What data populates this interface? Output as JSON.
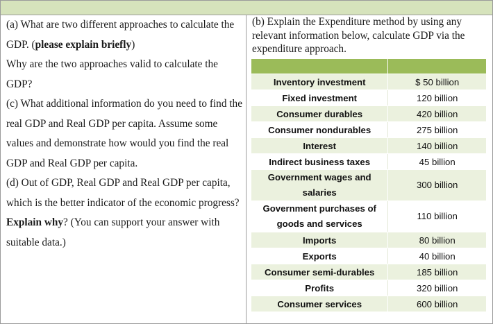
{
  "questions": {
    "a_text": "(a) What are two different approaches to calculate the GDP. (",
    "a_bold": "please explain briefly",
    "a_after": ")",
    "a_followup": "Why are the two approaches valid to calculate the GDP?",
    "c_text": "(c) What additional information do you need to find the real GDP and Real GDP per capita. Assume some values and demonstrate how would you find the real GDP and Real GDP per capita.",
    "d_text": "(d) Out of GDP, Real GDP and Real GDP per capita, which is the better indicator of the economic progress? ",
    "d_bold": "Explain why",
    "d_after": "? (You can support your answer with suitable data.)"
  },
  "part_b": {
    "prompt": "(b) Explain the Expenditure method by using any relevant information below, calculate GDP via the expenditure approach."
  },
  "table": {
    "rows": [
      {
        "label": "Inventory investment",
        "value": "$ 50 billion"
      },
      {
        "label": "Fixed investment",
        "value": "120 billion"
      },
      {
        "label": "Consumer durables",
        "value": "420 billion"
      },
      {
        "label": "Consumer nondurables",
        "value": "275 billion"
      },
      {
        "label": "Interest",
        "value": "140 billion"
      },
      {
        "label": "Indirect business taxes",
        "value": "45 billion"
      },
      {
        "label": "Government wages and salaries",
        "value": "300 billion"
      },
      {
        "label": "Government purchases of goods and services",
        "value": "110 billion"
      },
      {
        "label": "Imports",
        "value": "80 billion"
      },
      {
        "label": "Exports",
        "value": "40 billion"
      },
      {
        "label": "Consumer semi-durables",
        "value": "185 billion"
      },
      {
        "label": "Profits",
        "value": "320 billion"
      },
      {
        "label": "Consumer services",
        "value": "600 billion"
      }
    ]
  },
  "colors": {
    "top_bar": "#d6e3bc",
    "table_header": "#9bbb59",
    "row_band": "#ebf1de"
  }
}
